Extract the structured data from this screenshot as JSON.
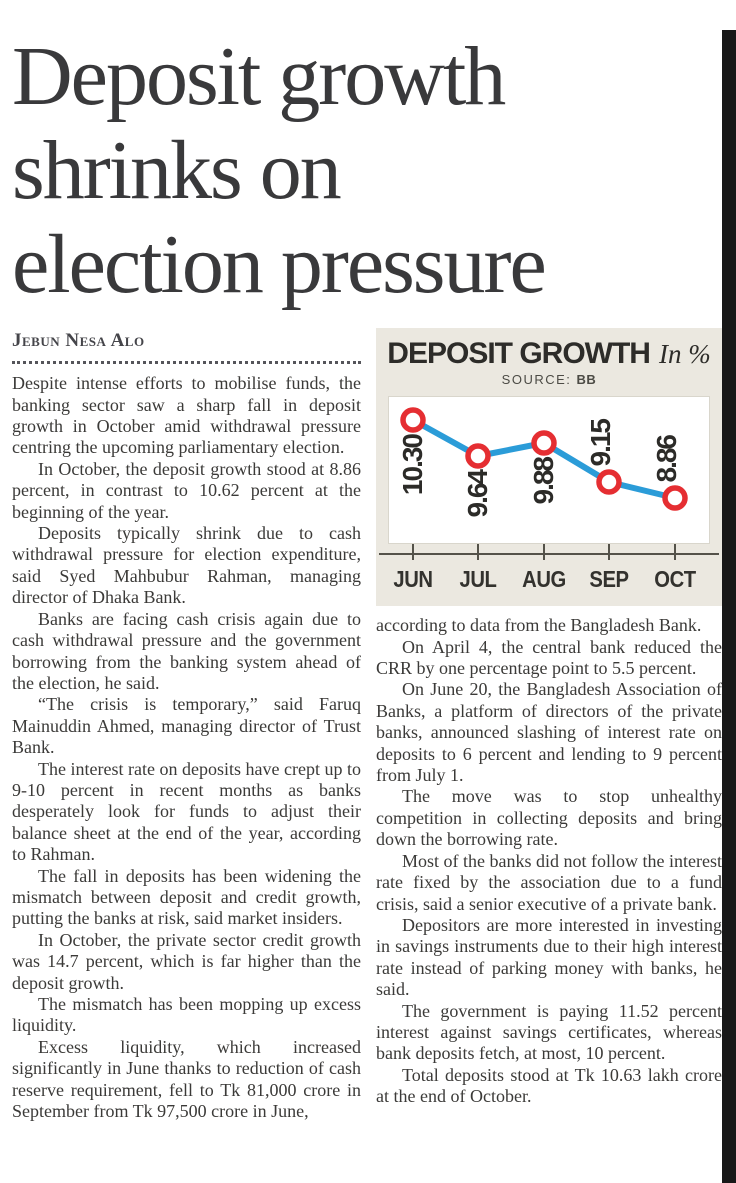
{
  "article": {
    "headline_lines": [
      "Deposit growth",
      "shrinks on",
      "election pressure"
    ],
    "byline": "Jebun Nesa Alo",
    "left_paragraphs": [
      "Despite intense efforts to mobilise funds, the banking sector saw a sharp fall in deposit growth in October amid withdrawal pressure centring the upcoming parliamentary election.",
      "In October, the deposit growth stood at 8.86 percent, in contrast to 10.62 percent at the beginning of the year.",
      "Deposits typically shrink due to cash withdrawal pressure for election expenditure, said Syed Mahbubur Rahman, managing director of Dhaka Bank.",
      "Banks are facing cash crisis again due to cash withdrawal pressure and the government borrowing from the banking system ahead of the election, he said.",
      "“The crisis is temporary,” said Faruq Mainuddin Ahmed, managing director of Trust Bank.",
      "The interest rate on deposits have crept up to 9-10 percent in recent months as banks desperately look for funds to adjust their balance sheet at the end of the year, according to Rahman.",
      "The fall in deposits has been widening the mismatch between deposit and credit growth, putting the banks at risk, said market insiders.",
      "In October, the private sector credit growth was 14.7 percent, which is far higher than the deposit growth.",
      "The mismatch has been mopping up excess liquidity.",
      "Excess liquidity, which increased significantly in June thanks to reduction of cash reserve requirement, fell to Tk 81,000 crore in September from Tk 97,500 crore in June,"
    ],
    "right_paragraphs": [
      "according to data from the Bangladesh Bank.",
      "On April 4, the central bank reduced the CRR by one percentage point to 5.5 percent.",
      "On June 20, the Bangladesh Association of Banks, a platform of directors of the private banks, announced slashing of interest rate on deposits to 6 percent and lending to 9 percent from July 1.",
      "The move was to stop unhealthy competition in collecting deposits and bring down the borrowing rate.",
      "Most of the banks did not follow the interest rate fixed by the association due to a fund crisis, said a senior executive of a private bank.",
      "Depositors are more interested in investing in savings instruments due to their high interest rate instead of parking money with banks, he said.",
      "The government is paying 11.52 percent interest against savings certificates, whereas bank deposits fetch, at most, 10 percent.",
      "Total deposits stood at Tk 10.63 lakh crore at the end of October."
    ]
  },
  "chart": {
    "title": "DEPOSIT GROWTH",
    "title_suffix": "In %",
    "source_label": "SOURCE:",
    "source_value": "BB",
    "colors": {
      "background": "#ebe8e0",
      "plot_background": "#ffffff",
      "line": "#2b9cd8",
      "marker_ring": "#e52e32",
      "marker_fill": "#ffffff",
      "axis": "#54524a",
      "label_text": "#2c2b28"
    }
  },
  "chart_data": {
    "type": "line",
    "title": "DEPOSIT GROWTH In %",
    "source": "BB",
    "categories": [
      "JUN",
      "JUL",
      "AUG",
      "SEP",
      "OCT"
    ],
    "values": [
      10.3,
      9.64,
      9.88,
      9.15,
      8.86
    ],
    "value_labels": [
      "10.30",
      "9.64",
      "9.88",
      "9.15",
      "8.86"
    ],
    "label_positions": [
      "below",
      "below",
      "below",
      "above",
      "above"
    ],
    "labels_rotated_90": true,
    "ylim": [
      8.0,
      10.75
    ],
    "xlabel": "",
    "ylabel": "",
    "grid": false,
    "legend": false
  }
}
